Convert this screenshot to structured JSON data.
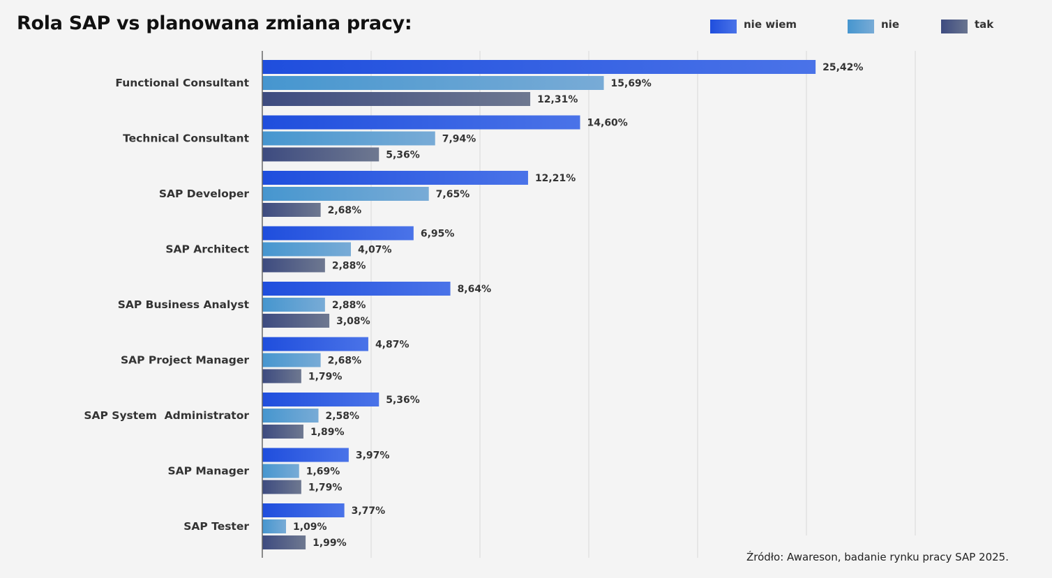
{
  "chart_data": {
    "type": "bar",
    "orientation": "horizontal",
    "title": "Rola SAP vs planowana zmiana pracy:",
    "source": "Źródło: Awareson, badanie rynku pracy SAP 2025.",
    "legend_position": "top-right",
    "grid": true,
    "xlim": [
      0,
      30
    ],
    "categories": [
      "Functional Consultant",
      "Technical Consultant",
      "SAP Developer",
      "SAP Architect",
      "SAP Business Analyst",
      "SAP Project Manager",
      "SAP System  Administrator",
      "SAP Manager",
      "SAP Tester"
    ],
    "series": [
      {
        "name": "nie wiem",
        "color": "#2451e0",
        "values": [
          25.42,
          14.6,
          12.21,
          6.95,
          8.64,
          4.87,
          5.36,
          3.97,
          3.77
        ],
        "labels": [
          "25,42%",
          "14,60%",
          "12,21%",
          "6,95%",
          "8,64%",
          "4,87%",
          "5,36%",
          "3,97%",
          "3,77%"
        ]
      },
      {
        "name": "nie",
        "color": "#4a9ad0",
        "values": [
          15.69,
          7.94,
          7.65,
          4.07,
          2.88,
          2.68,
          2.58,
          1.69,
          1.09
        ],
        "labels": [
          "15,69%",
          "7,94%",
          "7,65%",
          "4,07%",
          "2,88%",
          "2,68%",
          "2,58%",
          "1,69%",
          "1,09%"
        ]
      },
      {
        "name": "tak",
        "color": "#3e4e82",
        "values": [
          12.31,
          5.36,
          2.68,
          2.88,
          3.08,
          1.79,
          1.89,
          1.79,
          1.99
        ],
        "labels": [
          "12,31%",
          "5,36%",
          "2,68%",
          "2,88%",
          "3,08%",
          "1,79%",
          "1,89%",
          "1,79%",
          "1,99%"
        ]
      }
    ]
  }
}
